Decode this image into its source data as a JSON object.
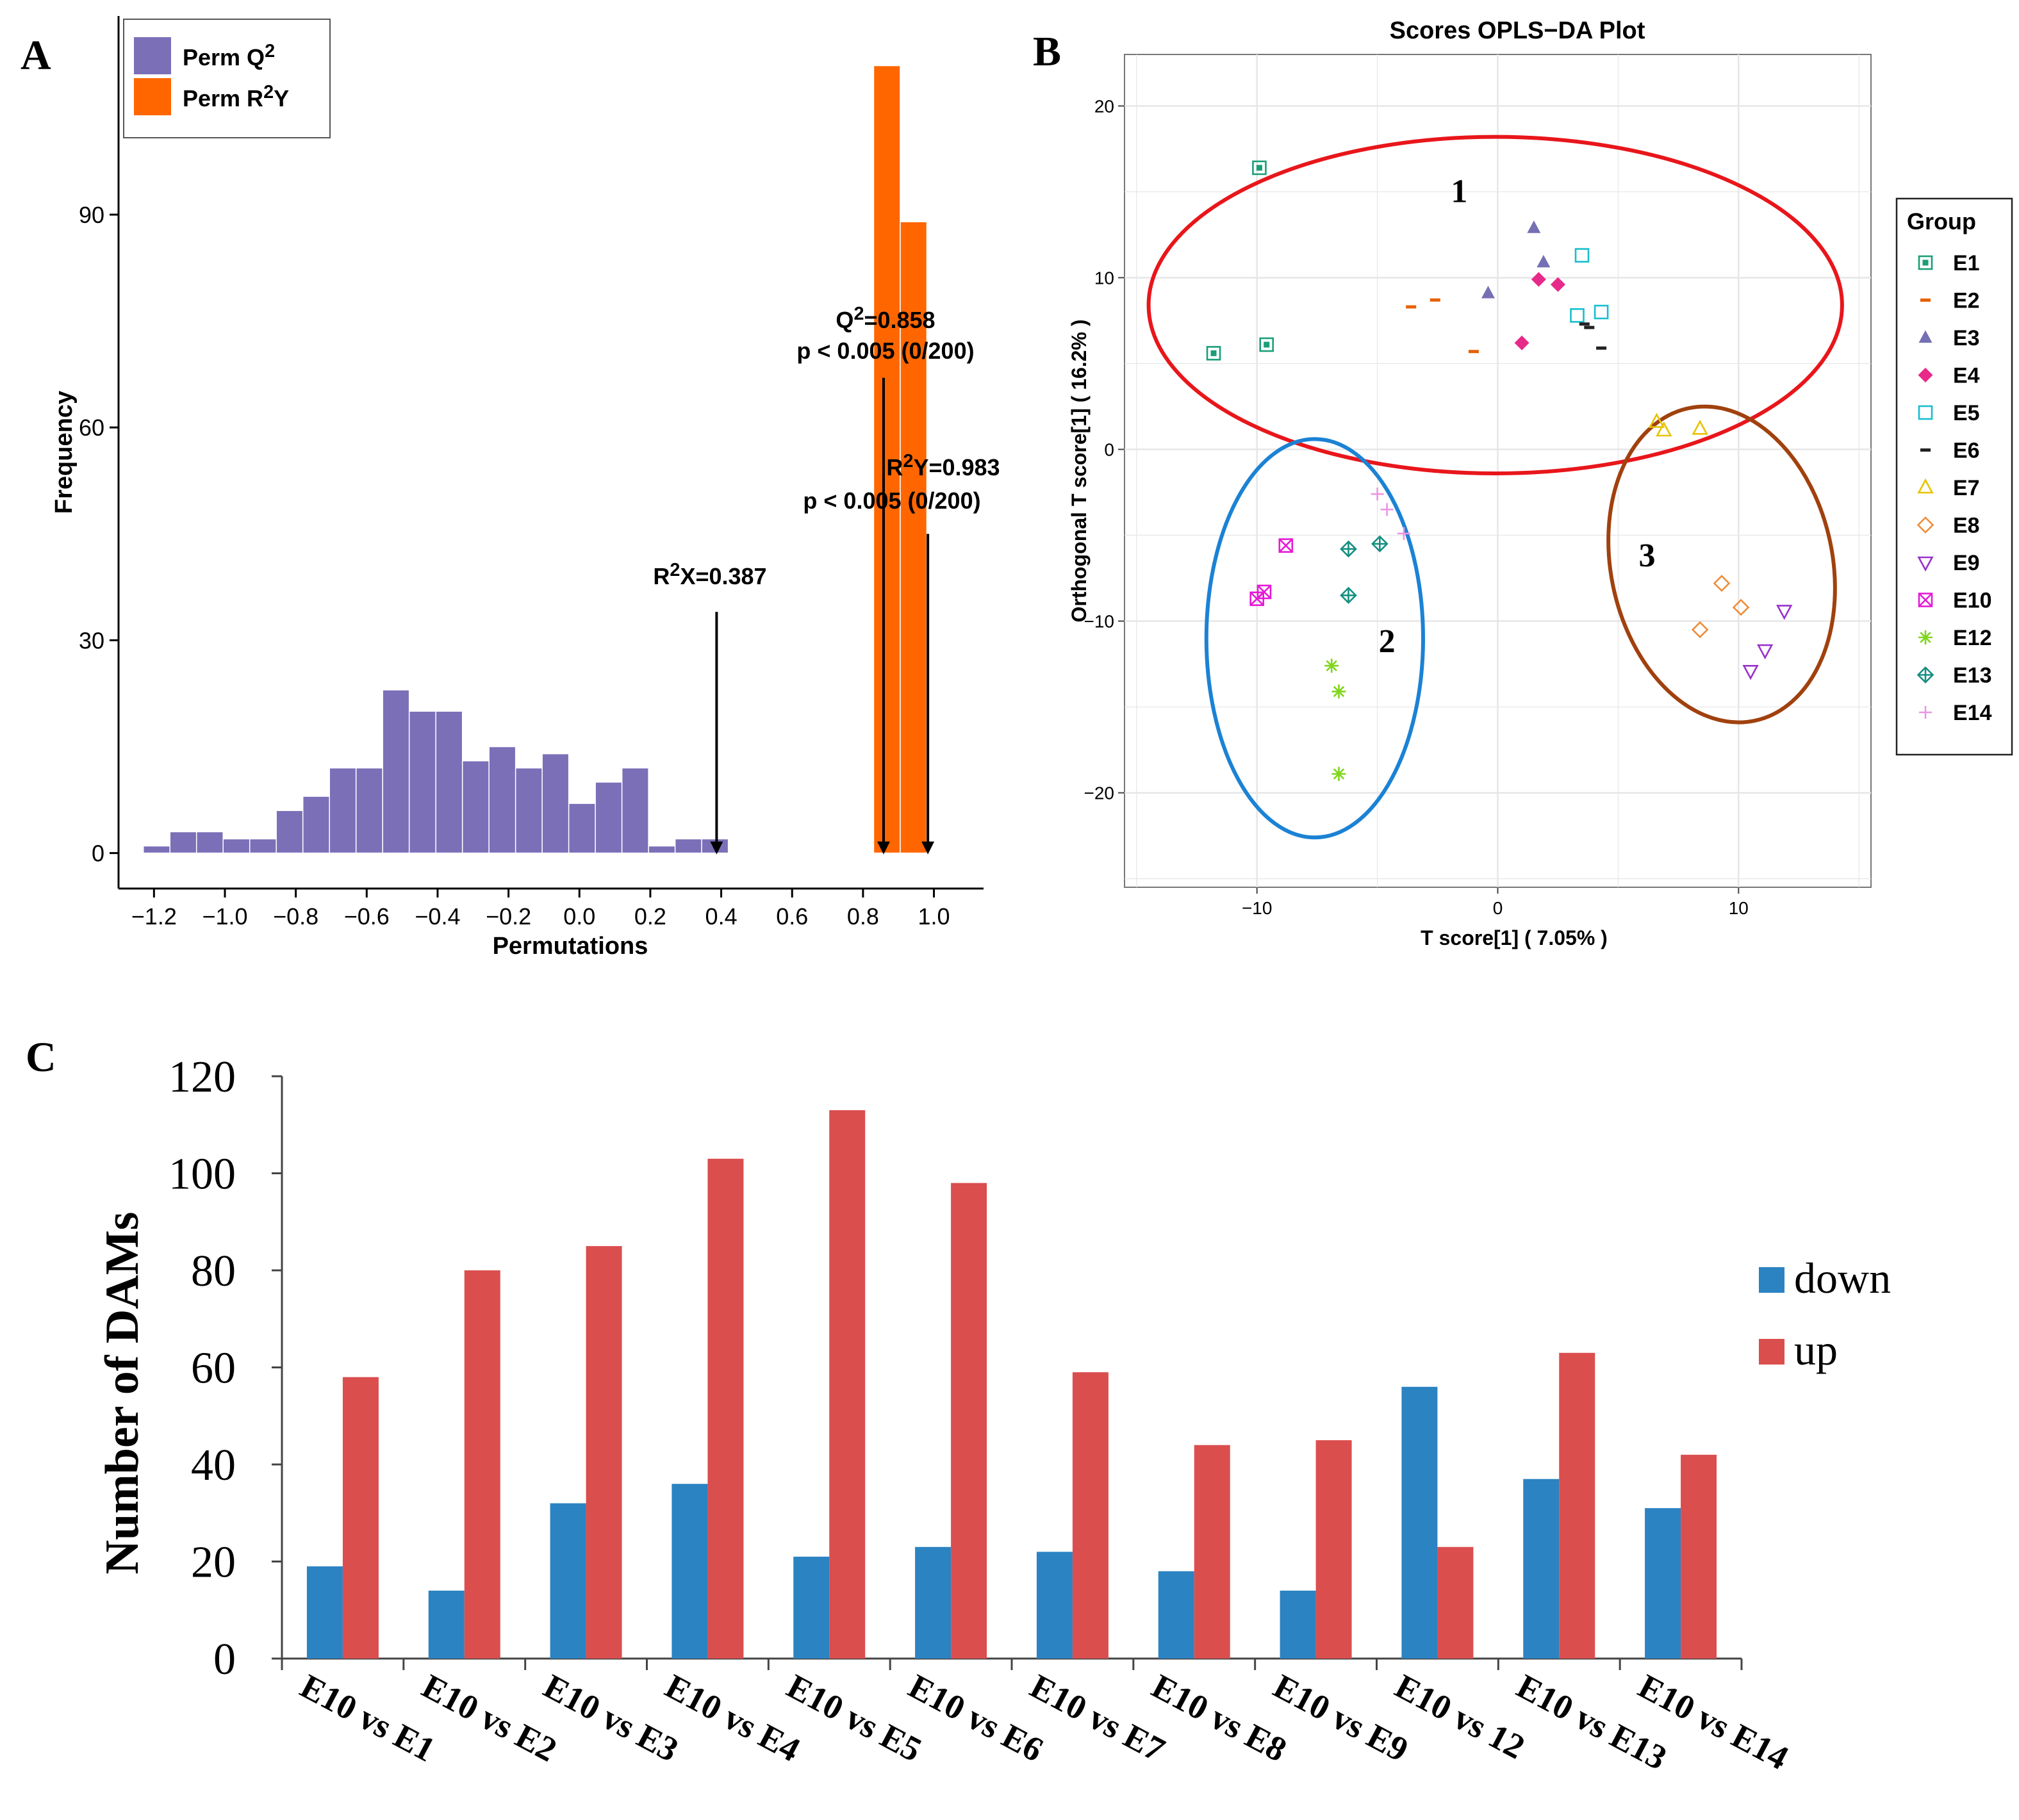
{
  "panels": {
    "a": {
      "label": "A"
    },
    "b": {
      "label": "B"
    },
    "c": {
      "label": "C"
    }
  },
  "chart_data": [
    {
      "panel": "A",
      "type": "bar",
      "title": "",
      "xlabel": "Permutations",
      "ylabel": "Frequency",
      "xlim": [
        -1.3,
        1.14
      ],
      "ylim": [
        -5,
        118
      ],
      "xticks": [
        -1.2,
        -1.0,
        -0.8,
        -0.6,
        -0.4,
        -0.2,
        0.0,
        0.2,
        0.4,
        0.6,
        0.8,
        1.0
      ],
      "xtick_labels": [
        "−1.2",
        "−1.0",
        "−0.8",
        "−0.6",
        "−0.4",
        "−0.2",
        "0.0",
        "0.2",
        "0.4",
        "0.6",
        "0.8",
        "1.0"
      ],
      "yticks": [
        0,
        30,
        60,
        90
      ],
      "ytick_labels": [
        "0",
        "30",
        "60",
        "90"
      ],
      "bin_width": 0.075,
      "legend": {
        "position": "top-left",
        "entries": [
          {
            "name": "Perm",
            "sym": "Q",
            "sup": "2",
            "suffix": "",
            "color": "#7b6fb8"
          },
          {
            "name": "Perm",
            "sym": "R",
            "sup": "2",
            "suffix": "Y",
            "color": "#ff6600"
          }
        ]
      },
      "series": [
        {
          "name": "Perm Q2",
          "color": "#7b6fb8",
          "bin_starts": [
            -1.23,
            -1.155,
            -1.08,
            -1.005,
            -0.93,
            -0.855,
            -0.78,
            -0.705,
            -0.63,
            -0.555,
            -0.48,
            -0.405,
            -0.33,
            -0.255,
            -0.18,
            -0.105,
            -0.03,
            0.045,
            0.12,
            0.195,
            0.27,
            0.345
          ],
          "values": [
            1,
            3,
            3,
            2,
            2,
            6,
            8,
            12,
            12,
            23,
            20,
            20,
            13,
            15,
            12,
            14,
            7,
            10,
            12,
            1,
            2,
            2
          ]
        },
        {
          "name": "Perm R2Y",
          "color": "#ff6600",
          "bin_starts": [
            0.83,
            0.905
          ],
          "values": [
            111,
            89
          ]
        }
      ],
      "annotations": [
        {
          "line1": {
            "sym": "Q",
            "sup": "2",
            "rest": "=0.858"
          },
          "line2": "p < 0.005 (0/200)",
          "x": 0.858,
          "arrow_from": 67
        },
        {
          "line1": {
            "sym": "R",
            "sup": "2",
            "rest": "Y=0.983"
          },
          "line2": "p < 0.005 (0/200)",
          "x": 0.983,
          "arrow_from": 45
        },
        {
          "line1": {
            "sym": "R",
            "sup": "2",
            "rest": "X=0.387"
          },
          "line2": "",
          "x": 0.387,
          "arrow_from": 34
        }
      ]
    },
    {
      "panel": "B",
      "type": "scatter",
      "title": "Scores OPLS−DA Plot",
      "xlabel": "T score[1] ( 7.05% )",
      "ylabel": "Orthogonal T score[1] ( 16.2% )",
      "xlim": [
        -15.5,
        15.5
      ],
      "ylim": [
        -25.5,
        23
      ],
      "xticks": [
        -10,
        0,
        10
      ],
      "xtick_labels": [
        "−10",
        "0",
        "10"
      ],
      "yticks": [
        -20,
        -10,
        0,
        10,
        20
      ],
      "ytick_labels": [
        "−20",
        "−10",
        "0",
        "10",
        "20"
      ],
      "grid": true,
      "legend": {
        "title": "Group",
        "position": "right",
        "entries": [
          {
            "name": "E1",
            "color": "#1a9e77",
            "shape": "square-box"
          },
          {
            "name": "E2",
            "color": "#e66101",
            "shape": "dash"
          },
          {
            "name": "E3",
            "color": "#7570b3",
            "shape": "triangle"
          },
          {
            "name": "E4",
            "color": "#e7298a",
            "shape": "diamond"
          },
          {
            "name": "E5",
            "color": "#17becf",
            "shape": "square-open"
          },
          {
            "name": "E6",
            "color": "#222222",
            "shape": "dash"
          },
          {
            "name": "E7",
            "color": "#e6c300",
            "shape": "triangle-open"
          },
          {
            "name": "E8",
            "color": "#f08c3a",
            "shape": "diamond-open"
          },
          {
            "name": "E9",
            "color": "#9932cc",
            "shape": "triangle-down-open"
          },
          {
            "name": "E10",
            "color": "#e51ad6",
            "shape": "square-x"
          },
          {
            "name": "E12",
            "color": "#7fd61a",
            "shape": "asterisk"
          },
          {
            "name": "E13",
            "color": "#168f80",
            "shape": "diamond-plus"
          },
          {
            "name": "E14",
            "color": "#e996e4",
            "shape": "plus"
          }
        ]
      },
      "series": [
        {
          "name": "E1",
          "x": [
            -9.9,
            -11.8,
            -9.6
          ],
          "y": [
            16.4,
            5.6,
            6.1
          ]
        },
        {
          "name": "E2",
          "x": [
            -3.6,
            -2.6,
            -1.0
          ],
          "y": [
            8.3,
            8.7,
            5.7
          ]
        },
        {
          "name": "E3",
          "x": [
            1.5,
            1.9,
            -0.4
          ],
          "y": [
            12.9,
            10.9,
            9.1
          ]
        },
        {
          "name": "E4",
          "x": [
            1.7,
            2.5,
            1.0
          ],
          "y": [
            9.9,
            9.6,
            6.2
          ]
        },
        {
          "name": "E5",
          "x": [
            3.5,
            4.3,
            3.3
          ],
          "y": [
            11.3,
            8.0,
            7.8
          ]
        },
        {
          "name": "E6",
          "x": [
            3.6,
            4.3,
            3.8
          ],
          "y": [
            7.3,
            5.9,
            7.1
          ]
        },
        {
          "name": "E7",
          "x": [
            6.6,
            6.9,
            8.4
          ],
          "y": [
            1.6,
            1.1,
            1.2
          ]
        },
        {
          "name": "E8",
          "x": [
            9.3,
            10.1,
            8.4
          ],
          "y": [
            -7.8,
            -9.2,
            -10.5
          ]
        },
        {
          "name": "E9",
          "x": [
            11.9,
            11.1,
            10.5
          ],
          "y": [
            -9.4,
            -11.7,
            -12.9
          ]
        },
        {
          "name": "E10",
          "x": [
            -8.8,
            -9.7,
            -10.0
          ],
          "y": [
            -5.6,
            -8.3,
            -8.7
          ]
        },
        {
          "name": "E12",
          "x": [
            -6.9,
            -6.6,
            -6.6
          ],
          "y": [
            -12.6,
            -14.1,
            -18.9
          ]
        },
        {
          "name": "E13",
          "x": [
            -6.2,
            -4.9,
            -6.2
          ],
          "y": [
            -5.8,
            -5.5,
            -8.5
          ]
        },
        {
          "name": "E14",
          "x": [
            -5.0,
            -4.6,
            -3.9
          ],
          "y": [
            -2.6,
            -3.5,
            -4.9
          ]
        }
      ],
      "clusters": [
        {
          "label": "1",
          "color": "#e8161b",
          "cx": -0.1,
          "cy": 8.4,
          "rx": 14.4,
          "ry": 9.8,
          "angle": 0,
          "label_x": -1.6,
          "label_y": 14.4
        },
        {
          "label": "2",
          "color": "#1b82d4",
          "cx": -7.6,
          "cy": -11.0,
          "rx": 4.5,
          "ry": 11.6,
          "angle": 0,
          "label_x": -4.6,
          "label_y": -11.8
        },
        {
          "label": "3",
          "color": "#a0410e",
          "cx": 9.3,
          "cy": -6.7,
          "rx": 4.6,
          "ry": 9.3,
          "angle": -12,
          "label_x": 6.2,
          "label_y": -6.8
        }
      ]
    },
    {
      "panel": "C",
      "type": "bar",
      "title": "",
      "xlabel": "",
      "ylabel": "Number of DAMs",
      "ylim": [
        0,
        120
      ],
      "yticks": [
        0,
        20,
        40,
        60,
        80,
        100,
        120
      ],
      "ytick_labels": [
        "0",
        "20",
        "40",
        "60",
        "80",
        "100",
        "120"
      ],
      "categories": [
        "E10 vs E1",
        "E10 vs E2",
        "E10 vs E3",
        "E10 vs E4",
        "E10 vs E5",
        "E10 vs E6",
        "E10 vs E7",
        "E10 vs E8",
        "E10 vs E9",
        "E10 vs 12",
        "E10 vs E13",
        "E10 vs E14"
      ],
      "legend": {
        "position": "right"
      },
      "series": [
        {
          "name": "down",
          "color": "#2b83c2",
          "values": [
            19,
            14,
            32,
            36,
            21,
            23,
            22,
            18,
            14,
            56,
            37,
            31
          ]
        },
        {
          "name": "up",
          "color": "#db4e4e",
          "values": [
            58,
            80,
            85,
            103,
            113,
            98,
            59,
            44,
            45,
            23,
            63,
            42
          ]
        }
      ]
    }
  ]
}
